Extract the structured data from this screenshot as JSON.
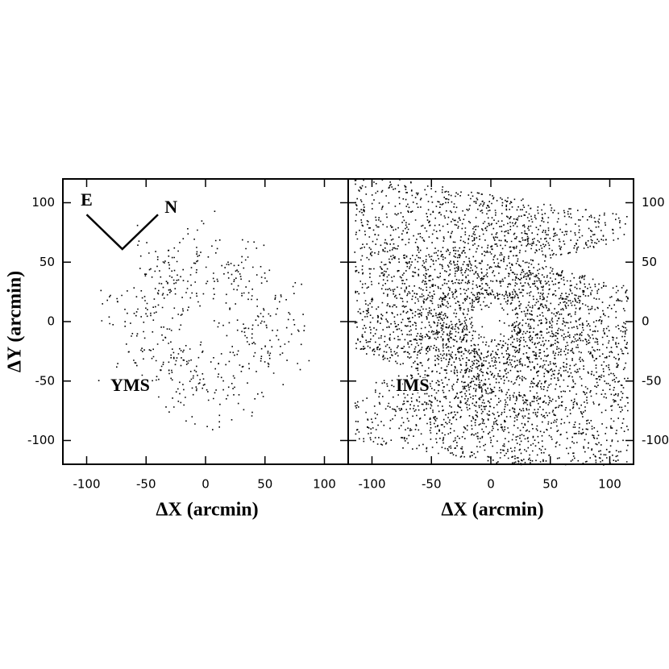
{
  "chart_data": [
    {
      "type": "density",
      "panel_label": "YMS",
      "xlabel": "ΔX (arcmin)",
      "ylabel": "ΔY (arcmin)",
      "xlim": [
        -120,
        120
      ],
      "ylim": [
        -120,
        120
      ],
      "xticks": [
        -100,
        -50,
        0,
        50,
        100
      ],
      "yticks": [
        -100,
        -50,
        0,
        50,
        100
      ],
      "ytick_side": "left",
      "compass": [
        "E",
        "N"
      ]
    },
    {
      "type": "density",
      "panel_label": "IMS",
      "xlabel": "ΔX (arcmin)",
      "xlim": [
        -120,
        120
      ],
      "ylim": [
        -120,
        120
      ],
      "xticks": [
        -100,
        -50,
        0,
        50,
        100
      ],
      "yticks": [
        -100,
        -50,
        0,
        50,
        100
      ],
      "ytick_side": "right"
    }
  ]
}
